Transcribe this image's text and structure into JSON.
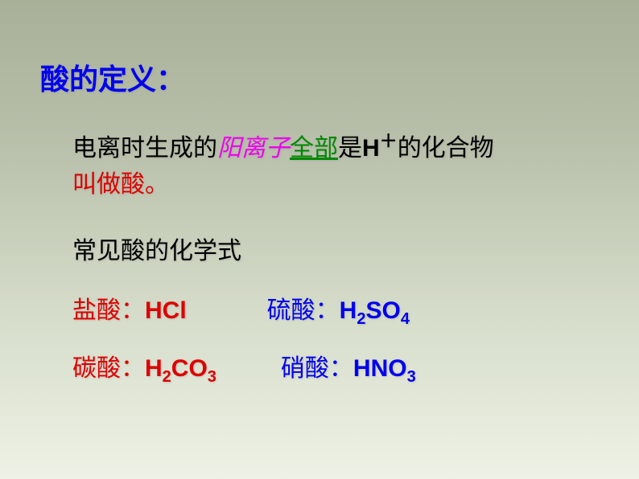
{
  "colors": {
    "title": "#0000ee",
    "text": "#000000",
    "cation": "#ee00ee",
    "all": "#008800",
    "called": "#dd0000",
    "red": "#dd0000",
    "blue": "#0000ee",
    "bg_top": "#a8b098",
    "bg_bottom": "#eef2e6"
  },
  "font_sizes": {
    "title": 36,
    "body": 30,
    "sub": 20,
    "sup": 22
  },
  "title": "酸的定义：",
  "definition": {
    "p1": "电离时生成的",
    "cation": "阳离子",
    "all": "全部",
    "is": "是",
    "hplus_h": "H",
    "hplus_plus": "＋",
    "p2": "的化合物",
    "called": "叫做酸。"
  },
  "subheading": "常见酸的化学式",
  "acids": {
    "hcl": {
      "label": "盐酸：",
      "formula": "HCl"
    },
    "h2so4": {
      "label": "硫酸：",
      "h": "H",
      "n2": "2",
      "so": "SO",
      "n4": "4"
    },
    "h2co3": {
      "label": "碳酸：",
      "h": "H",
      "n2": "2",
      "co": "CO",
      "n3": "3"
    },
    "hno3": {
      "label": "硝酸：",
      "hno": "HNO",
      "n3": "3"
    }
  }
}
